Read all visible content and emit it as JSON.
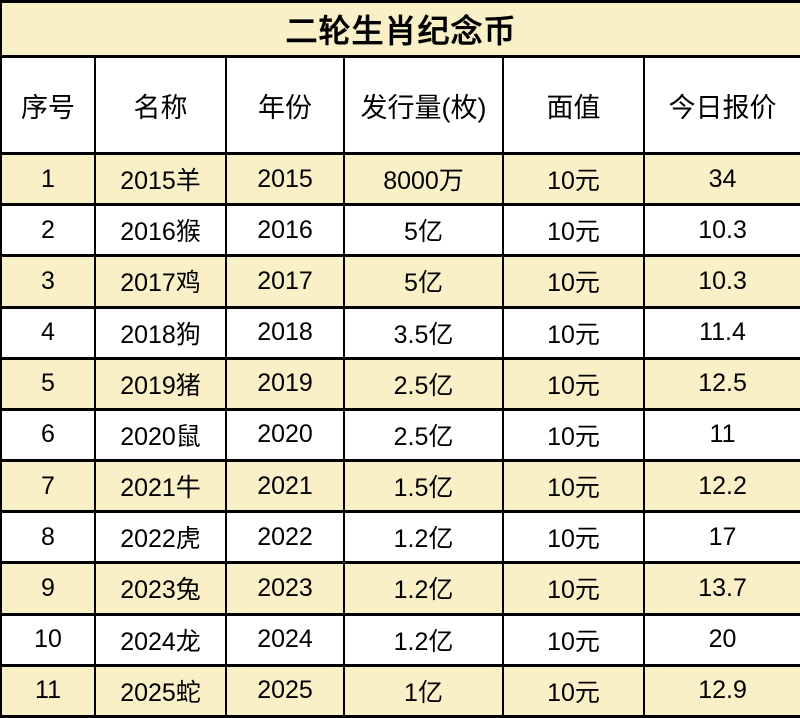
{
  "title": "二轮生肖纪念币",
  "colors": {
    "background": "#FFFFFF",
    "row_highlight": "#FAF0C8",
    "border": "#000000",
    "text": "#000000"
  },
  "table": {
    "columns": [
      "序号",
      "名称",
      "年份",
      "发行量(枚)",
      "面值",
      "今日报价"
    ],
    "row_keys": [
      "index",
      "name",
      "year",
      "mintage",
      "face_value",
      "price"
    ],
    "rows": [
      {
        "index": "1",
        "name": "2015羊",
        "year": "2015",
        "mintage": "8000万",
        "face_value": "10元",
        "price": "34"
      },
      {
        "index": "2",
        "name": "2016猴",
        "year": "2016",
        "mintage": "5亿",
        "face_value": "10元",
        "price": "10.3"
      },
      {
        "index": "3",
        "name": "2017鸡",
        "year": "2017",
        "mintage": "5亿",
        "face_value": "10元",
        "price": "10.3"
      },
      {
        "index": "4",
        "name": "2018狗",
        "year": "2018",
        "mintage": "3.5亿",
        "face_value": "10元",
        "price": "11.4"
      },
      {
        "index": "5",
        "name": "2019猪",
        "year": "2019",
        "mintage": "2.5亿",
        "face_value": "10元",
        "price": "12.5"
      },
      {
        "index": "6",
        "name": "2020鼠",
        "year": "2020",
        "mintage": "2.5亿",
        "face_value": "10元",
        "price": "11"
      },
      {
        "index": "7",
        "name": "2021牛",
        "year": "2021",
        "mintage": "1.5亿",
        "face_value": "10元",
        "price": "12.2"
      },
      {
        "index": "8",
        "name": "2022虎",
        "year": "2022",
        "mintage": "1.2亿",
        "face_value": "10元",
        "price": "17"
      },
      {
        "index": "9",
        "name": "2023兔",
        "year": "2023",
        "mintage": "1.2亿",
        "face_value": "10元",
        "price": "13.7"
      },
      {
        "index": "10",
        "name": "2024龙",
        "year": "2024",
        "mintage": "1.2亿",
        "face_value": "10元",
        "price": "20"
      },
      {
        "index": "11",
        "name": "2025蛇",
        "year": "2025",
        "mintage": "1亿",
        "face_value": "10元",
        "price": "12.9"
      }
    ]
  },
  "chart_data": {
    "type": "table",
    "title": "二轮生肖纪念币",
    "columns": [
      "序号",
      "名称",
      "年份",
      "发行量(枚)",
      "面值",
      "今日报价"
    ],
    "rows": [
      [
        "1",
        "2015羊",
        "2015",
        "8000万",
        "10元",
        "34"
      ],
      [
        "2",
        "2016猴",
        "2016",
        "5亿",
        "10元",
        "10.3"
      ],
      [
        "3",
        "2017鸡",
        "2017",
        "5亿",
        "10元",
        "10.3"
      ],
      [
        "4",
        "2018狗",
        "2018",
        "3.5亿",
        "10元",
        "11.4"
      ],
      [
        "5",
        "2019猪",
        "2019",
        "2.5亿",
        "10元",
        "12.5"
      ],
      [
        "6",
        "2020鼠",
        "2020",
        "2.5亿",
        "10元",
        "11"
      ],
      [
        "7",
        "2021牛",
        "2021",
        "1.5亿",
        "10元",
        "12.2"
      ],
      [
        "8",
        "2022虎",
        "2022",
        "1.2亿",
        "10元",
        "17"
      ],
      [
        "9",
        "2023兔",
        "2023",
        "1.2亿",
        "10元",
        "13.7"
      ],
      [
        "10",
        "2024龙",
        "2024",
        "1.2亿",
        "10元",
        "20"
      ],
      [
        "11",
        "2025蛇",
        "2025",
        "1亿",
        "10元",
        "12.9"
      ]
    ]
  }
}
